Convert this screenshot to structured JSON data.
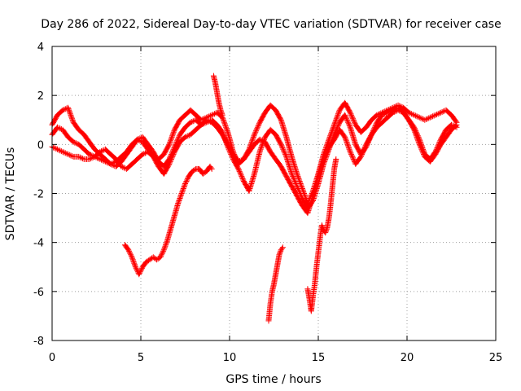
{
  "chart_data": {
    "type": "scatter",
    "title": "Day 286 of 2022, Sidereal Day-to-day VTEC variation (SDTVAR) for receiver case",
    "xlabel": "GPS time / hours",
    "ylabel": "SDTVAR / TECUs",
    "xlim": [
      0,
      25
    ],
    "ylim": [
      -8,
      4
    ],
    "xticks": [
      "0",
      "5",
      "10",
      "15",
      "20",
      "25"
    ],
    "yticks": [
      "-8",
      "-6",
      "-4",
      "-2",
      "0",
      "2",
      "4"
    ],
    "grid": true,
    "legend": "none",
    "marker": "plus",
    "color": "#ff0000",
    "series": [
      {
        "x": [
          0.0,
          0.3,
          0.6,
          0.9,
          1.2,
          1.5,
          1.8,
          2.1,
          2.4,
          2.7,
          3.0,
          3.3,
          3.6,
          3.9,
          4.2,
          4.5,
          4.8,
          5.1,
          5.4,
          5.7,
          6.0,
          6.3,
          6.6,
          6.9,
          7.2,
          7.5,
          7.8,
          8.1,
          8.4,
          8.7,
          9.0,
          9.3,
          9.6,
          9.9,
          10.2,
          10.5,
          10.8,
          11.1,
          11.4,
          11.7,
          12.0,
          12.3,
          12.6,
          12.9,
          13.2,
          13.5,
          13.8,
          14.1,
          14.4,
          14.7,
          15.0,
          15.3,
          15.6,
          15.9,
          16.2,
          16.5,
          16.8,
          17.1,
          17.4,
          17.7,
          18.0,
          18.3,
          18.6,
          18.9,
          19.2,
          19.5,
          19.8,
          20.1,
          20.4,
          20.7,
          21.0,
          21.3,
          21.6,
          21.9,
          22.2,
          22.5,
          22.8
        ],
        "y": [
          0.8,
          1.2,
          1.4,
          1.5,
          0.9,
          0.6,
          0.4,
          0.1,
          -0.2,
          -0.4,
          -0.6,
          -0.8,
          -0.7,
          -0.5,
          -0.3,
          0.0,
          0.2,
          0.1,
          -0.2,
          -0.5,
          -0.6,
          -0.4,
          0.0,
          0.6,
          1.0,
          1.2,
          1.4,
          1.2,
          1.0,
          1.1,
          1.2,
          1.3,
          1.1,
          0.5,
          -0.3,
          -0.8,
          -0.6,
          -0.2,
          0.4,
          0.9,
          1.3,
          1.6,
          1.4,
          1.0,
          0.3,
          -0.5,
          -1.2,
          -1.8,
          -2.4,
          -1.9,
          -1.2,
          -0.4,
          0.2,
          0.8,
          1.4,
          1.7,
          1.3,
          0.8,
          0.5,
          0.7,
          1.0,
          1.2,
          1.3,
          1.4,
          1.5,
          1.6,
          1.5,
          1.3,
          1.2,
          1.1,
          1.0,
          1.1,
          1.2,
          1.3,
          1.4,
          1.2,
          0.9
        ]
      },
      {
        "x": [
          0.0,
          0.3,
          0.6,
          0.9,
          1.2,
          1.5,
          1.8,
          2.1,
          2.4,
          2.7,
          3.0,
          3.3,
          3.6,
          3.9,
          4.2,
          4.5,
          4.8,
          5.1,
          5.4,
          5.7,
          6.0,
          6.3,
          6.6,
          6.9,
          7.2,
          7.5,
          7.8,
          8.1,
          8.4,
          8.7,
          9.0,
          9.3,
          9.6,
          9.9,
          10.2,
          10.5,
          10.8,
          11.1,
          11.4,
          11.7,
          12.0,
          12.3,
          12.6,
          12.9,
          13.2,
          13.5,
          13.8,
          14.1,
          14.4,
          14.7,
          15.0,
          15.3,
          15.6,
          15.9,
          16.2,
          16.5,
          16.8,
          17.1,
          17.4,
          17.7,
          18.0,
          18.3,
          18.6,
          18.9,
          19.2,
          19.5,
          19.8,
          20.1,
          20.4,
          20.7,
          21.0,
          21.3,
          21.6,
          21.9,
          22.2,
          22.5,
          22.8
        ],
        "y": [
          0.4,
          0.7,
          0.6,
          0.3,
          0.1,
          0.0,
          -0.2,
          -0.4,
          -0.5,
          -0.6,
          -0.7,
          -0.8,
          -0.9,
          -0.7,
          -0.4,
          -0.1,
          0.2,
          0.3,
          0.0,
          -0.3,
          -0.7,
          -0.9,
          -0.6,
          -0.1,
          0.4,
          0.7,
          0.9,
          1.0,
          0.8,
          0.9,
          1.0,
          0.8,
          0.5,
          -0.1,
          -0.6,
          -1.0,
          -1.5,
          -1.9,
          -1.2,
          -0.3,
          0.3,
          0.6,
          0.4,
          0.0,
          -0.5,
          -1.2,
          -1.7,
          -2.2,
          -2.6,
          -2.3,
          -1.6,
          -0.8,
          -0.2,
          0.4,
          0.9,
          1.2,
          0.7,
          0.0,
          -0.4,
          -0.1,
          0.4,
          0.9,
          1.2,
          1.3,
          1.4,
          1.5,
          1.3,
          1.0,
          0.7,
          0.2,
          -0.4,
          -0.6,
          -0.3,
          0.2,
          0.6,
          0.8,
          0.7
        ]
      },
      {
        "x": [
          0.0,
          0.3,
          0.6,
          0.9,
          1.2,
          1.5,
          1.8,
          2.1,
          2.4,
          2.7,
          3.0,
          3.3,
          3.6,
          3.9,
          4.2,
          4.5,
          4.8,
          5.1,
          5.4,
          5.7,
          6.0,
          6.3,
          6.6,
          6.9,
          7.2,
          7.5,
          7.8,
          8.1,
          8.4,
          8.7,
          9.0,
          9.3,
          9.6,
          9.9,
          10.2,
          10.5,
          10.8,
          11.1,
          11.4,
          11.7,
          12.0,
          12.3,
          12.6,
          12.9,
          13.2,
          13.5,
          13.8,
          14.1,
          14.4,
          14.7,
          15.0,
          15.3,
          15.6,
          15.9,
          16.2,
          16.5,
          16.8,
          17.1,
          17.4,
          17.7,
          18.0,
          18.3,
          18.6,
          18.9,
          19.2,
          19.5,
          19.8,
          20.1,
          20.4,
          20.7,
          21.0,
          21.3,
          21.6,
          21.9,
          22.2,
          22.5,
          22.8
        ],
        "y": [
          -0.1,
          -0.2,
          -0.3,
          -0.4,
          -0.5,
          -0.5,
          -0.6,
          -0.6,
          -0.5,
          -0.3,
          -0.2,
          -0.4,
          -0.6,
          -0.9,
          -1.0,
          -0.8,
          -0.6,
          -0.4,
          -0.3,
          -0.5,
          -0.9,
          -1.2,
          -0.8,
          -0.3,
          0.1,
          0.3,
          0.4,
          0.6,
          0.8,
          1.0,
          0.9,
          0.7,
          0.4,
          0.0,
          -0.4,
          -0.7,
          -0.6,
          -0.3,
          0.0,
          0.2,
          0.1,
          -0.3,
          -0.6,
          -0.9,
          -1.3,
          -1.7,
          -2.1,
          -2.5,
          -2.8,
          -2.1,
          -1.3,
          -0.6,
          -0.1,
          0.2,
          0.6,
          0.3,
          -0.3,
          -0.8,
          -0.5,
          0.0,
          0.4,
          0.7,
          0.9,
          1.1,
          1.3,
          1.4,
          1.3,
          1.0,
          0.6,
          0.0,
          -0.5,
          -0.7,
          -0.4,
          0.0,
          0.3,
          0.6,
          0.8
        ]
      },
      {
        "x": [
          4.1,
          4.3,
          4.5,
          4.7,
          4.9,
          5.1,
          5.3,
          5.5,
          5.7,
          5.9,
          6.1,
          6.3,
          6.5,
          6.7,
          6.9,
          7.1,
          7.3,
          7.5,
          7.7,
          7.9,
          8.1,
          8.3,
          8.5,
          8.7,
          8.9,
          9.0
        ],
        "y": [
          -4.1,
          -4.3,
          -4.6,
          -5.0,
          -5.3,
          -5.0,
          -4.8,
          -4.7,
          -4.6,
          -4.7,
          -4.6,
          -4.3,
          -3.9,
          -3.4,
          -2.9,
          -2.4,
          -2.0,
          -1.6,
          -1.3,
          -1.1,
          -1.0,
          -1.0,
          -1.2,
          -1.1,
          -0.9,
          -1.0
        ]
      },
      {
        "x": [
          9.1,
          9.2,
          9.3,
          9.4,
          9.5,
          9.6
        ],
        "y": [
          2.8,
          2.5,
          2.1,
          1.7,
          1.4,
          1.2
        ]
      },
      {
        "x": [
          12.2,
          12.3,
          12.4,
          12.5,
          12.6,
          12.7,
          12.8,
          12.9,
          13.0
        ],
        "y": [
          -7.2,
          -6.5,
          -6.0,
          -5.7,
          -5.3,
          -4.9,
          -4.5,
          -4.3,
          -4.2
        ]
      },
      {
        "x": [
          14.4,
          14.5,
          14.6,
          14.7,
          14.8,
          14.9,
          15.0,
          15.1,
          15.2,
          15.3,
          15.4,
          15.5,
          15.6,
          15.7,
          15.8,
          15.9,
          16.0
        ],
        "y": [
          -5.9,
          -6.3,
          -6.8,
          -6.2,
          -5.7,
          -5.0,
          -4.4,
          -3.8,
          -3.3,
          -3.5,
          -3.6,
          -3.4,
          -3.0,
          -2.4,
          -1.7,
          -1.0,
          -0.6
        ]
      }
    ]
  }
}
